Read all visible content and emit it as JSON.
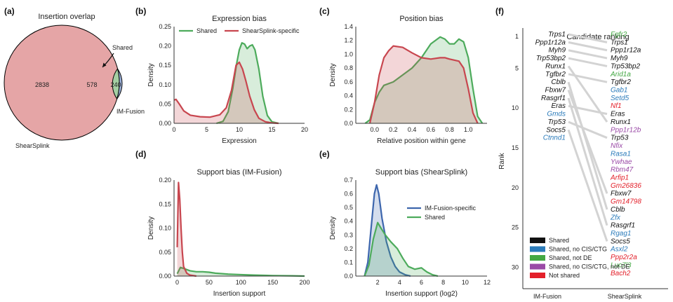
{
  "chart_data": [
    {
      "panel": "(a)",
      "type": "venn",
      "title": "Insertion overlap",
      "sets": [
        {
          "name": "ShearSplink",
          "only": 2838,
          "color": "#e5a5a6"
        },
        {
          "name": "IM-Fusion",
          "only": 240,
          "color": "#9db3dc"
        }
      ],
      "intersection": {
        "value": 578,
        "label": "Shared",
        "color": "#a4cfa3"
      }
    },
    {
      "panel": "(b)",
      "type": "area",
      "title": "Expression bias",
      "xlabel": "Expression",
      "ylabel": "Density",
      "xlim": [
        0,
        20
      ],
      "ylim": [
        0,
        0.25
      ],
      "xticks": [
        0,
        5,
        10,
        15,
        20
      ],
      "yticks": [
        0.0,
        0.05,
        0.1,
        0.15,
        0.2,
        0.25
      ],
      "series": [
        {
          "name": "Shared",
          "color": "#4dab5c",
          "points": [
            [
              6.5,
              0
            ],
            [
              7.5,
              0.005
            ],
            [
              8.3,
              0.03
            ],
            [
              9,
              0.09
            ],
            [
              9.6,
              0.155
            ],
            [
              10,
              0.19
            ],
            [
              10.4,
              0.208
            ],
            [
              10.8,
              0.205
            ],
            [
              11.2,
              0.193
            ],
            [
              11.6,
              0.2
            ],
            [
              12,
              0.203
            ],
            [
              12.4,
              0.19
            ],
            [
              13,
              0.14
            ],
            [
              13.6,
              0.07
            ],
            [
              14.3,
              0.02
            ],
            [
              15,
              0.004
            ],
            [
              16,
              0
            ]
          ]
        },
        {
          "name": "ShearSplink-specific",
          "color": "#c8464f",
          "points": [
            [
              0,
              0.06
            ],
            [
              0.3,
              0.062
            ],
            [
              0.8,
              0.05
            ],
            [
              1.5,
              0.032
            ],
            [
              2.5,
              0.021
            ],
            [
              4,
              0.017
            ],
            [
              5.5,
              0.016
            ],
            [
              7,
              0.022
            ],
            [
              8,
              0.04
            ],
            [
              8.8,
              0.085
            ],
            [
              9.5,
              0.15
            ],
            [
              10,
              0.158
            ],
            [
              10.5,
              0.14
            ],
            [
              11,
              0.11
            ],
            [
              11.6,
              0.07
            ],
            [
              12.3,
              0.035
            ],
            [
              13,
              0.013
            ],
            [
              14,
              0.004
            ],
            [
              15,
              0.001
            ],
            [
              16,
              0
            ]
          ]
        }
      ],
      "legend": "top"
    },
    {
      "panel": "(c)",
      "type": "area",
      "title": "Position bias",
      "xlabel": "Relative position within gene",
      "ylabel": "Density",
      "xlim": [
        -0.2,
        1.2
      ],
      "ylim": [
        0,
        1.4
      ],
      "xticks": [
        0.0,
        0.2,
        0.4,
        0.6,
        0.8,
        1.0
      ],
      "yticks": [
        0.0,
        0.2,
        0.4,
        0.6,
        0.8,
        1.0,
        1.2,
        1.4
      ],
      "series": [
        {
          "name": "Shared",
          "color": "#4dab5c",
          "points": [
            [
              -0.1,
              0
            ],
            [
              -0.05,
              0.05
            ],
            [
              0,
              0.3
            ],
            [
              0.05,
              0.45
            ],
            [
              0.1,
              0.55
            ],
            [
              0.2,
              0.6
            ],
            [
              0.3,
              0.7
            ],
            [
              0.4,
              0.8
            ],
            [
              0.5,
              0.95
            ],
            [
              0.6,
              1.15
            ],
            [
              0.7,
              1.25
            ],
            [
              0.75,
              1.22
            ],
            [
              0.8,
              1.15
            ],
            [
              0.85,
              1.15
            ],
            [
              0.9,
              1.22
            ],
            [
              0.95,
              1.18
            ],
            [
              1.0,
              0.95
            ],
            [
              1.05,
              0.5
            ],
            [
              1.1,
              0.1
            ],
            [
              1.15,
              0
            ]
          ]
        },
        {
          "name": "ShearSplink-specific",
          "color": "#c8464f",
          "points": [
            [
              -0.05,
              0
            ],
            [
              0,
              0.3
            ],
            [
              0.05,
              0.7
            ],
            [
              0.1,
              0.95
            ],
            [
              0.15,
              1.05
            ],
            [
              0.2,
              1.12
            ],
            [
              0.3,
              1.1
            ],
            [
              0.4,
              1.02
            ],
            [
              0.5,
              0.95
            ],
            [
              0.6,
              0.93
            ],
            [
              0.7,
              0.95
            ],
            [
              0.75,
              0.95
            ],
            [
              0.8,
              0.93
            ],
            [
              0.9,
              0.9
            ],
            [
              0.95,
              0.8
            ],
            [
              1.0,
              0.5
            ],
            [
              1.05,
              0.15
            ],
            [
              1.1,
              0
            ]
          ]
        }
      ]
    },
    {
      "panel": "(d)",
      "type": "area",
      "title": "Support bias (IM-Fusion)",
      "xlabel": "Insertion support",
      "ylabel": "Density",
      "xlim": [
        -5,
        200
      ],
      "ylim": [
        0,
        0.2
      ],
      "xticks": [
        0,
        50,
        100,
        150,
        200
      ],
      "yticks": [
        0.0,
        0.05,
        0.1,
        0.15,
        0.2
      ],
      "series": [
        {
          "name": "Shared",
          "color": "#4dab5c",
          "points": [
            [
              0,
              0.005
            ],
            [
              5,
              0.018
            ],
            [
              10,
              0.016
            ],
            [
              20,
              0.011
            ],
            [
              30,
              0.009
            ],
            [
              40,
              0.009
            ],
            [
              50,
              0.008
            ],
            [
              60,
              0.006
            ],
            [
              80,
              0.004
            ],
            [
              100,
              0.003
            ],
            [
              120,
              0.002
            ],
            [
              150,
              0.001
            ],
            [
              180,
              0.0005
            ],
            [
              200,
              0
            ]
          ]
        },
        {
          "name": "IM-Fusion-specific",
          "color": "#c8464f",
          "points": [
            [
              0,
              0.06
            ],
            [
              2,
              0.195
            ],
            [
              4,
              0.16
            ],
            [
              6,
              0.1
            ],
            [
              8,
              0.05
            ],
            [
              10,
              0.02
            ],
            [
              15,
              0.006
            ],
            [
              20,
              0.002
            ],
            [
              30,
              0
            ]
          ]
        }
      ]
    },
    {
      "panel": "(e)",
      "type": "area",
      "title": "Support bias (ShearSplink)",
      "xlabel": "Insertion support (log2)",
      "ylabel": "Density",
      "xlim": [
        0,
        12
      ],
      "ylim": [
        0,
        0.7
      ],
      "xticks": [
        2,
        4,
        6,
        8,
        10,
        12
      ],
      "yticks": [
        0.0,
        0.1,
        0.2,
        0.3,
        0.4,
        0.5,
        0.6,
        0.7
      ],
      "series": [
        {
          "name": "IM-Fusion-specific",
          "color": "#3d66ad",
          "points": [
            [
              0.8,
              0
            ],
            [
              1.1,
              0.1
            ],
            [
              1.4,
              0.35
            ],
            [
              1.7,
              0.6
            ],
            [
              1.9,
              0.665
            ],
            [
              2.1,
              0.6
            ],
            [
              2.4,
              0.42
            ],
            [
              2.8,
              0.25
            ],
            [
              3.2,
              0.14
            ],
            [
              3.6,
              0.07
            ],
            [
              4,
              0.03
            ],
            [
              4.5,
              0.01
            ],
            [
              5,
              0
            ]
          ]
        },
        {
          "name": "Shared",
          "color": "#4dab5c",
          "points": [
            [
              0.8,
              0
            ],
            [
              1.2,
              0.08
            ],
            [
              1.6,
              0.27
            ],
            [
              2,
              0.39
            ],
            [
              2.3,
              0.35
            ],
            [
              2.7,
              0.3
            ],
            [
              3.2,
              0.25
            ],
            [
              3.8,
              0.2
            ],
            [
              4.3,
              0.13
            ],
            [
              4.8,
              0.07
            ],
            [
              5.4,
              0.05
            ],
            [
              6,
              0.06
            ],
            [
              6.5,
              0.03
            ],
            [
              7,
              0.01
            ],
            [
              7.5,
              0
            ]
          ]
        }
      ],
      "legend": "top-right"
    },
    {
      "panel": "(f)",
      "type": "bump",
      "title": "Candidate ranking",
      "ylabel": "Rank",
      "xlabels": [
        "IM-Fusion",
        "ShearSplink"
      ],
      "yticks": [
        1,
        5,
        10,
        15,
        20,
        25,
        30
      ],
      "im_fusion": [
        {
          "rank": 1,
          "gene": "Trps1",
          "cat": "shared"
        },
        {
          "rank": 2,
          "gene": "Ppp1r12a",
          "cat": "shared"
        },
        {
          "rank": 3,
          "gene": "Myh9",
          "cat": "shared"
        },
        {
          "rank": 4,
          "gene": "Trp53bp2",
          "cat": "shared"
        },
        {
          "rank": 5,
          "gene": "Runx1",
          "cat": "shared"
        },
        {
          "rank": 6,
          "gene": "Tgfbr2",
          "cat": "shared"
        },
        {
          "rank": 7,
          "gene": "Cblb",
          "cat": "shared"
        },
        {
          "rank": 8,
          "gene": "Fbxw7",
          "cat": "shared"
        },
        {
          "rank": 9,
          "gene": "Rasgrf1",
          "cat": "shared"
        },
        {
          "rank": 10,
          "gene": "Eras",
          "cat": "shared"
        },
        {
          "rank": 11,
          "gene": "Gmds",
          "cat": "shared_no_cis"
        },
        {
          "rank": 12,
          "gene": "Trp53",
          "cat": "shared"
        },
        {
          "rank": 13,
          "gene": "Socs5",
          "cat": "shared"
        },
        {
          "rank": 14,
          "gene": "Ctnnd1",
          "cat": "shared_no_cis"
        }
      ],
      "shearsplink": [
        {
          "rank": 1,
          "gene": "Fgfr2",
          "cat": "shared_not_de"
        },
        {
          "rank": 2,
          "gene": "Trps1",
          "cat": "shared"
        },
        {
          "rank": 3,
          "gene": "Ppp1r12a",
          "cat": "shared"
        },
        {
          "rank": 4,
          "gene": "Myh9",
          "cat": "shared"
        },
        {
          "rank": 5,
          "gene": "Trp53bp2",
          "cat": "shared"
        },
        {
          "rank": 6,
          "gene": "Arid1a",
          "cat": "shared_not_de"
        },
        {
          "rank": 7,
          "gene": "Tgfbr2",
          "cat": "shared"
        },
        {
          "rank": 8,
          "gene": "Gab1",
          "cat": "shared_no_cis"
        },
        {
          "rank": 9,
          "gene": "Setd5",
          "cat": "shared_no_cis"
        },
        {
          "rank": 10,
          "gene": "Nf1",
          "cat": "not_shared"
        },
        {
          "rank": 11,
          "gene": "Eras",
          "cat": "shared"
        },
        {
          "rank": 12,
          "gene": "Runx1",
          "cat": "shared"
        },
        {
          "rank": 13,
          "gene": "Ppp1r12b",
          "cat": "shared_no_cis_not_de"
        },
        {
          "rank": 14,
          "gene": "Trp53",
          "cat": "shared"
        },
        {
          "rank": 15,
          "gene": "Nfix",
          "cat": "shared_no_cis_not_de"
        },
        {
          "rank": 16,
          "gene": "Rasa1",
          "cat": "shared_no_cis"
        },
        {
          "rank": 17,
          "gene": "Ywhae",
          "cat": "shared_no_cis_not_de"
        },
        {
          "rank": 18,
          "gene": "Rbm47",
          "cat": "shared_no_cis_not_de"
        },
        {
          "rank": 19,
          "gene": "Arfip1",
          "cat": "not_shared"
        },
        {
          "rank": 20,
          "gene": "Gm26836",
          "cat": "not_shared"
        },
        {
          "rank": 21,
          "gene": "Fbxw7",
          "cat": "shared"
        },
        {
          "rank": 22,
          "gene": "Gm14798",
          "cat": "not_shared"
        },
        {
          "rank": 23,
          "gene": "Cblb",
          "cat": "shared"
        },
        {
          "rank": 24,
          "gene": "Zfx",
          "cat": "shared_no_cis"
        },
        {
          "rank": 25,
          "gene": "Rasgrf1",
          "cat": "shared"
        },
        {
          "rank": 26,
          "gene": "Rgag1",
          "cat": "shared_no_cis"
        },
        {
          "rank": 27,
          "gene": "Socs5",
          "cat": "shared"
        },
        {
          "rank": 28,
          "gene": "Asxl2",
          "cat": "shared_no_cis"
        },
        {
          "rank": 29,
          "gene": "Ppp2r2a",
          "cat": "not_shared"
        },
        {
          "rank": 30,
          "gene": "Luc7l3",
          "cat": "shared_not_de"
        },
        {
          "rank": 31,
          "gene": "Bach2",
          "cat": "not_shared"
        }
      ],
      "categories": [
        {
          "key": "shared",
          "label": "Shared",
          "color": "#111111"
        },
        {
          "key": "shared_no_cis",
          "label": "Shared, no CIS/CTG",
          "color": "#2b7bba"
        },
        {
          "key": "shared_not_de",
          "label": "Shared, not DE",
          "color": "#43a843"
        },
        {
          "key": "shared_no_cis_not_de",
          "label": "Shared, no CIS/CTG, not DE",
          "color": "#9a4aa6"
        },
        {
          "key": "not_shared",
          "label": "Not shared",
          "color": "#e3202a"
        }
      ],
      "legend": "bottom-left"
    }
  ]
}
